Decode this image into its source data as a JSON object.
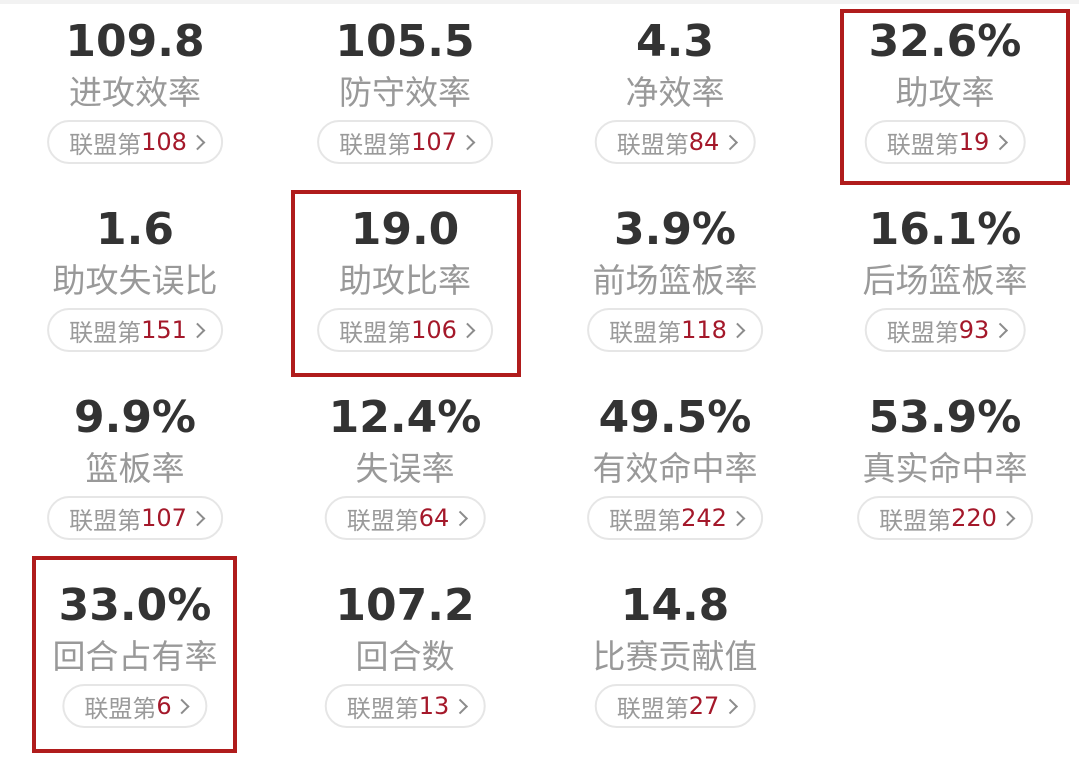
{
  "rank_prefix": "联盟第",
  "stats": [
    {
      "value": "109.8",
      "label": "进攻效率",
      "rank": "108"
    },
    {
      "value": "105.5",
      "label": "防守效率",
      "rank": "107"
    },
    {
      "value": "4.3",
      "label": "净效率",
      "rank": "84"
    },
    {
      "value": "32.6%",
      "label": "助攻率",
      "rank": "19"
    },
    {
      "value": "1.6",
      "label": "助攻失误比",
      "rank": "151"
    },
    {
      "value": "19.0",
      "label": "助攻比率",
      "rank": "106"
    },
    {
      "value": "3.9%",
      "label": "前场篮板率",
      "rank": "118"
    },
    {
      "value": "16.1%",
      "label": "后场篮板率",
      "rank": "93"
    },
    {
      "value": "9.9%",
      "label": "篮板率",
      "rank": "107"
    },
    {
      "value": "12.4%",
      "label": "失误率",
      "rank": "64"
    },
    {
      "value": "49.5%",
      "label": "有效命中率",
      "rank": "242"
    },
    {
      "value": "53.9%",
      "label": "真实命中率",
      "rank": "220"
    },
    {
      "value": "33.0%",
      "label": "回合占有率",
      "rank": "6"
    },
    {
      "value": "107.2",
      "label": "回合数",
      "rank": "13"
    },
    {
      "value": "14.8",
      "label": "比赛贡献值",
      "rank": "27"
    }
  ],
  "highlighted": [
    "助攻率",
    "助攻比率",
    "回合占有率"
  ],
  "colors": {
    "value_text": "#333333",
    "label_text": "#999999",
    "rank_number": "#a4182a",
    "highlight_border": "#b01c1c",
    "pill_border": "#e6e6e6"
  }
}
